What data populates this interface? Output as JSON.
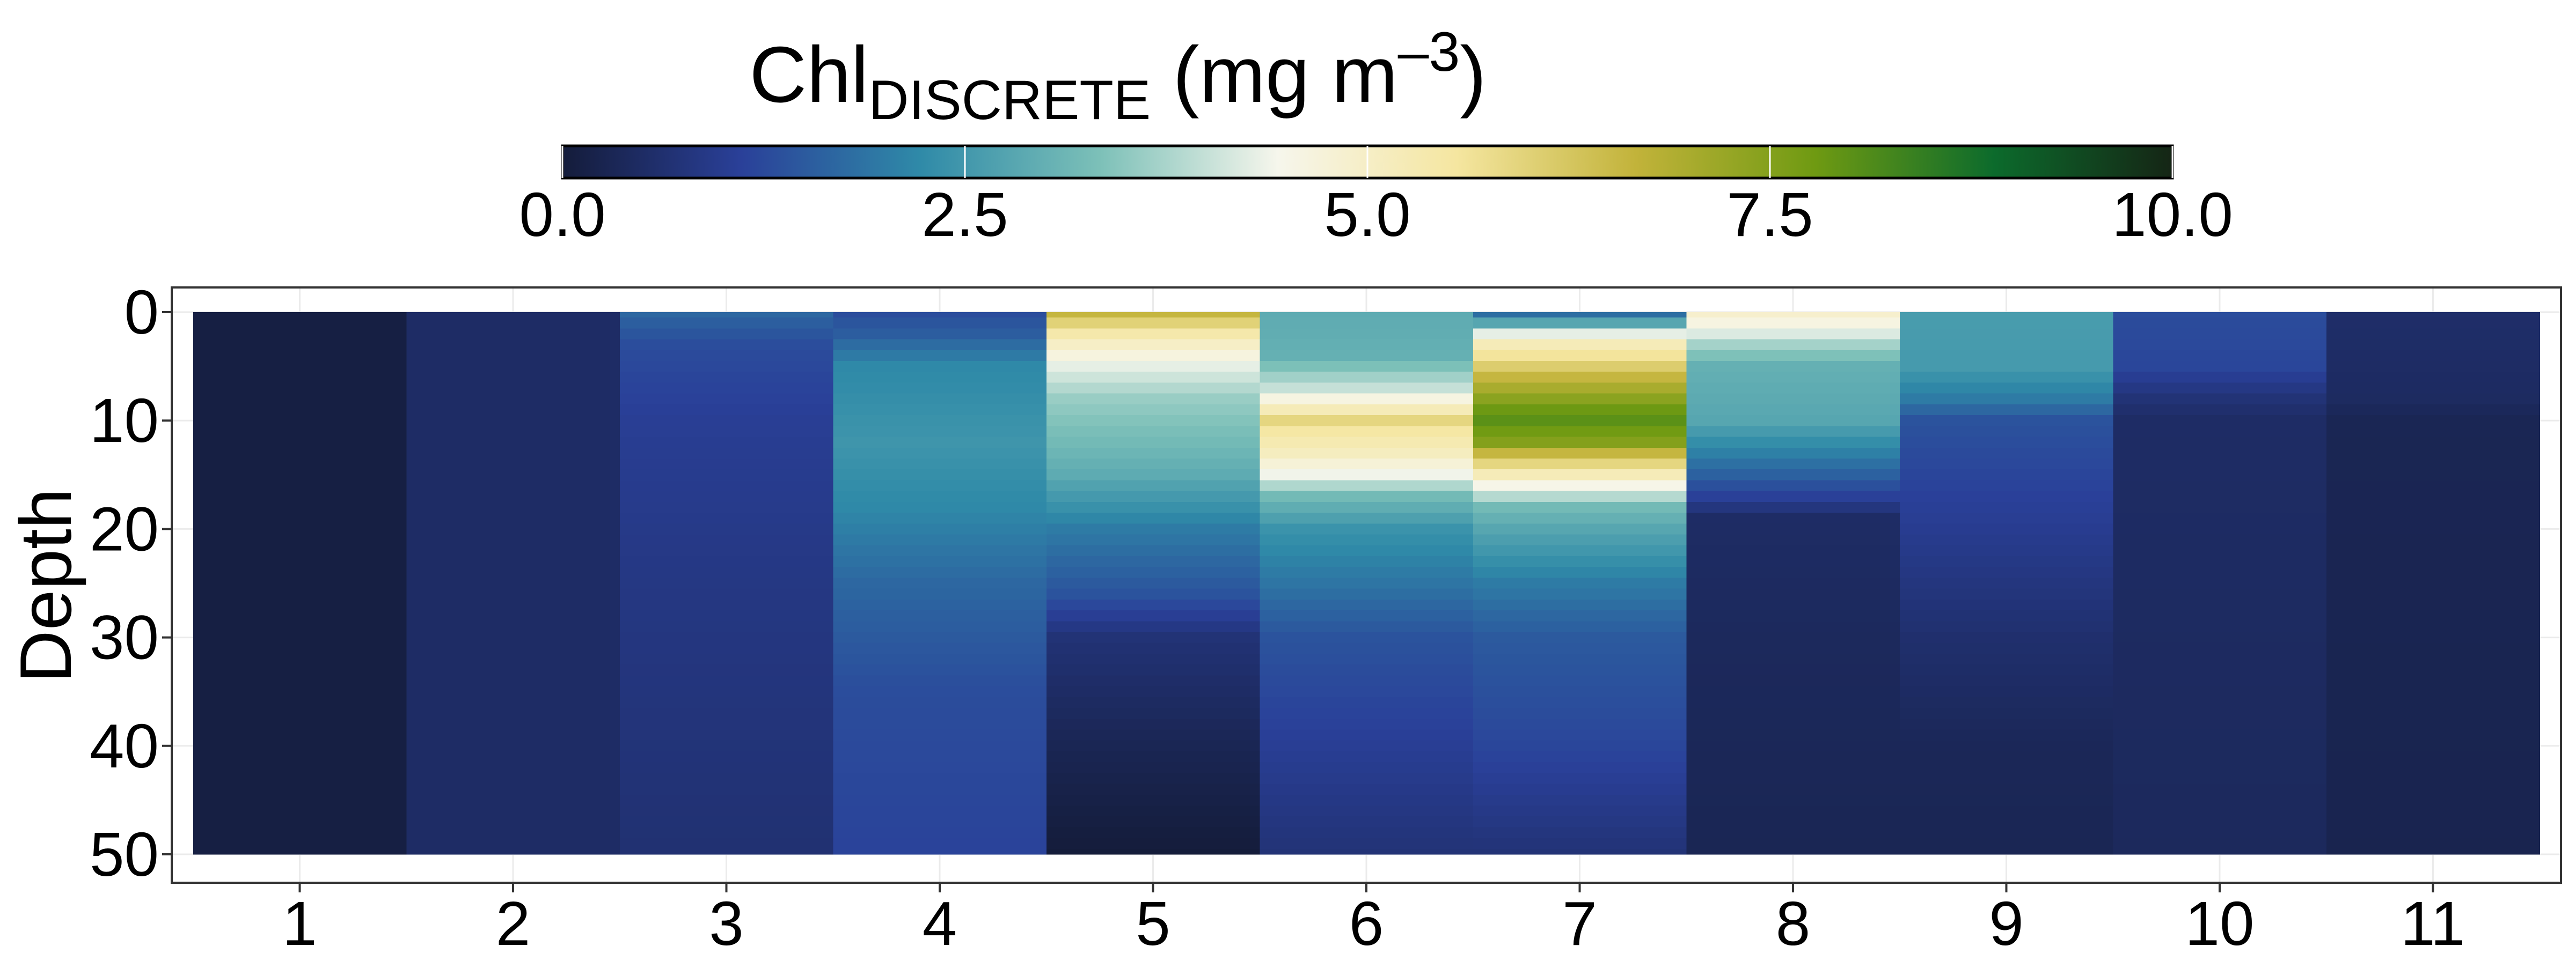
{
  "chart_data": {
    "type": "heatmap",
    "title": "",
    "xlabel": "",
    "ylabel": "Depth",
    "y_reversed": true,
    "x_ticks": [
      "1",
      "2",
      "3",
      "4",
      "5",
      "6",
      "7",
      "8",
      "9",
      "10",
      "11"
    ],
    "y_ticks": [
      "0",
      "10",
      "20",
      "30",
      "40",
      "50"
    ],
    "ylim": [
      0,
      50
    ],
    "grid": true,
    "colorbar": {
      "title_main": "Chl",
      "title_sub": "DISCRETE",
      "title_unit_pre": " (mg m",
      "title_exp": "–3",
      "title_unit_post": ")",
      "placement": "top",
      "ticks": [
        "0.0",
        "2.5",
        "5.0",
        "7.5",
        "10.0"
      ],
      "range": [
        0,
        10
      ],
      "colors": [
        "#141c3a",
        "#2a4099",
        "#2f8aa8",
        "#7cc0b8",
        "#f6f6ec",
        "#f5e6a0",
        "#c2b33a",
        "#6f9a12",
        "#0c6b2c",
        "#152515"
      ]
    },
    "depths": [
      0,
      1,
      2,
      3,
      4,
      5,
      6,
      7,
      8,
      9,
      10,
      11,
      12,
      13,
      14,
      15,
      16,
      17,
      18,
      19,
      20,
      21,
      22,
      23,
      24,
      25,
      26,
      27,
      28,
      29,
      30,
      31,
      32,
      33,
      34,
      35,
      36,
      37,
      38,
      39,
      40,
      41,
      42,
      43,
      44,
      45,
      46,
      47,
      48,
      49,
      50
    ],
    "stations": [
      {
        "x": 1,
        "profile": [
          [
            0,
            0.1
          ],
          [
            50,
            0.1
          ]
        ]
      },
      {
        "x": 2,
        "profile": [
          [
            0,
            0.5
          ],
          [
            50,
            0.5
          ]
        ]
      },
      {
        "x": 3,
        "profile": [
          [
            0,
            1.7
          ],
          [
            3,
            1.3
          ],
          [
            10,
            1.05
          ],
          [
            25,
            0.85
          ],
          [
            50,
            0.65
          ]
        ]
      },
      {
        "x": 4,
        "profile": [
          [
            0,
            1.3
          ],
          [
            2,
            1.55
          ],
          [
            5,
            2.2
          ],
          [
            12,
            2.45
          ],
          [
            18,
            2.2
          ],
          [
            25,
            1.7
          ],
          [
            35,
            1.3
          ],
          [
            50,
            1.15
          ]
        ]
      },
      {
        "x": 5,
        "profile": [
          [
            0,
            6.6
          ],
          [
            1,
            6.0
          ],
          [
            2,
            5.4
          ],
          [
            3,
            5.0
          ],
          [
            5,
            4.3
          ],
          [
            8,
            3.6
          ],
          [
            12,
            3.2
          ],
          [
            15,
            2.9
          ],
          [
            20,
            2.0
          ],
          [
            26,
            1.4
          ],
          [
            30,
            0.7
          ],
          [
            40,
            0.3
          ],
          [
            50,
            0.0
          ]
        ]
      },
      {
        "x": 6,
        "profile": [
          [
            0,
            2.9
          ],
          [
            4,
            3.0
          ],
          [
            7,
            4.0
          ],
          [
            8,
            4.6
          ],
          [
            9,
            5.2
          ],
          [
            10,
            5.9
          ],
          [
            11,
            5.5
          ],
          [
            13,
            5.1
          ],
          [
            15,
            4.4
          ],
          [
            17,
            3.2
          ],
          [
            20,
            2.4
          ],
          [
            25,
            1.9
          ],
          [
            30,
            1.4
          ],
          [
            40,
            1.05
          ],
          [
            50,
            0.7
          ]
        ]
      },
      {
        "x": 7,
        "profile": [
          [
            0,
            1.8
          ],
          [
            1,
            2.8
          ],
          [
            2,
            4.3
          ],
          [
            3,
            5.2
          ],
          [
            4,
            5.6
          ],
          [
            6,
            6.6
          ],
          [
            7,
            7.0
          ],
          [
            9,
            7.8
          ],
          [
            10,
            8.0
          ],
          [
            12,
            7.5
          ],
          [
            13,
            6.6
          ],
          [
            14,
            5.9
          ],
          [
            15,
            5.2
          ],
          [
            16,
            4.5
          ],
          [
            18,
            3.2
          ],
          [
            20,
            2.8
          ],
          [
            25,
            2.0
          ],
          [
            30,
            1.5
          ],
          [
            40,
            1.2
          ],
          [
            50,
            0.7
          ]
        ]
      },
      {
        "x": 8,
        "profile": [
          [
            0,
            4.9
          ],
          [
            1,
            4.6
          ],
          [
            2,
            4.2
          ],
          [
            3,
            3.7
          ],
          [
            5,
            3.0
          ],
          [
            10,
            2.8
          ],
          [
            12,
            2.3
          ],
          [
            15,
            1.6
          ],
          [
            17,
            1.1
          ],
          [
            19,
            0.5
          ],
          [
            30,
            0.4
          ],
          [
            50,
            0.3
          ]
        ]
      },
      {
        "x": 9,
        "profile": [
          [
            0,
            2.6
          ],
          [
            5,
            2.55
          ],
          [
            8,
            2.0
          ],
          [
            10,
            1.4
          ],
          [
            12,
            1.3
          ],
          [
            20,
            1.0
          ],
          [
            30,
            0.6
          ],
          [
            40,
            0.35
          ],
          [
            50,
            0.3
          ]
        ]
      },
      {
        "x": 10,
        "profile": [
          [
            0,
            1.3
          ],
          [
            5,
            1.2
          ],
          [
            8,
            0.7
          ],
          [
            10,
            0.5
          ],
          [
            50,
            0.4
          ]
        ]
      },
      {
        "x": 11,
        "profile": [
          [
            0,
            0.55
          ],
          [
            8,
            0.45
          ],
          [
            10,
            0.3
          ],
          [
            50,
            0.25
          ]
        ]
      }
    ]
  }
}
